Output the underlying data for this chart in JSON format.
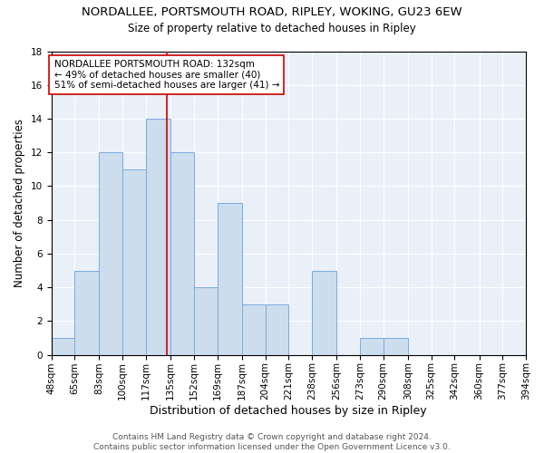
{
  "title1": "NORDALLEE, PORTSMOUTH ROAD, RIPLEY, WOKING, GU23 6EW",
  "title2": "Size of property relative to detached houses in Ripley",
  "xlabel": "Distribution of detached houses by size in Ripley",
  "ylabel": "Number of detached properties",
  "bin_edges": [
    48,
    65,
    83,
    100,
    117,
    135,
    152,
    169,
    187,
    204,
    221,
    238,
    256,
    273,
    290,
    308,
    325,
    342,
    360,
    377,
    394
  ],
  "bar_heights": [
    1,
    5,
    12,
    11,
    14,
    12,
    4,
    9,
    3,
    3,
    0,
    5,
    0,
    1,
    1,
    0,
    0,
    0,
    0,
    0
  ],
  "bar_color": "#ccdded",
  "bar_edge_color": "#7aabe0",
  "vline_x": 132,
  "vline_color": "#cc0000",
  "annotation_text": "NORDALLEE PORTSMOUTH ROAD: 132sqm\n← 49% of detached houses are smaller (40)\n51% of semi-detached houses are larger (41) →",
  "annotation_box_color": "white",
  "annotation_box_edge_color": "#cc0000",
  "ylim": [
    0,
    18
  ],
  "yticks": [
    0,
    2,
    4,
    6,
    8,
    10,
    12,
    14,
    16,
    18
  ],
  "footer1": "Contains HM Land Registry data © Crown copyright and database right 2024.",
  "footer2": "Contains public sector information licensed under the Open Government Licence v3.0.",
  "plot_bg_color": "#eaf0f8",
  "title1_fontsize": 9.5,
  "title2_fontsize": 8.5,
  "xlabel_fontsize": 9,
  "ylabel_fontsize": 8.5,
  "tick_fontsize": 7.5,
  "annotation_fontsize": 7.5,
  "footer_fontsize": 6.5
}
